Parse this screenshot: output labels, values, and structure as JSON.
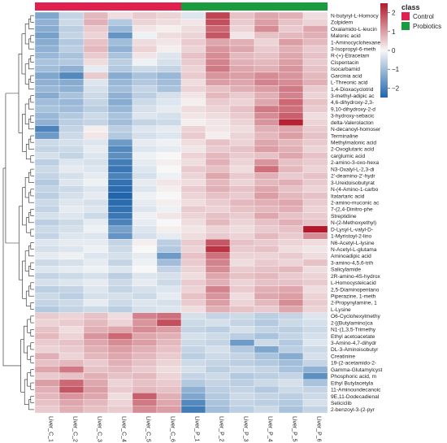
{
  "chart_data": {
    "type": "heatmap",
    "columns": [
      "Liver_C_1",
      "Liver_C_2",
      "Liver_C_3",
      "Liver_C_4",
      "Liver_C_5",
      "Liver_C_6",
      "Liver_P_1",
      "Liver_P_2",
      "Liver_P_3",
      "Liver_P_4",
      "Liver_P_5",
      "Liver_P_6"
    ],
    "column_class": [
      "Control",
      "Control",
      "Control",
      "Control",
      "Control",
      "Control",
      "Probiotics",
      "Probiotics",
      "Probiotics",
      "Probiotics",
      "Probiotics",
      "Probiotics"
    ],
    "rows": [
      "N-butyryl-L-Homocy",
      "Zolpidem",
      "Oxalamido-L-leucin",
      "Malonic acid",
      "1-Aminocyclohexane",
      "3-Isopropyl-6-meth",
      "R-(+)-Etracetam",
      "Cispentacin",
      "Isocarbamid",
      "Garcinia acid",
      "L-Threonic acid",
      "1,4-Dioxacyclotrid",
      "3-methyl-adipic ac",
      "4,6-dihydroxy-2,3-",
      "9,10-dihydroxy-2-d",
      "3-hydroxy-sebacic",
      "delta-Valerolacton",
      "N-decanoyl-homoser",
      "Terminaline",
      "Methylmalonic acid",
      "2-Oxoglutaric acid",
      "carglumic acid",
      "2-amino-3-oxo-hexa",
      "N3-Oxalyl-L-2,3-di",
      "2'-deamino-2'-hydr",
      "3-Ureidoisobutyrat",
      "N-(4-Amino-1-carbo",
      "Itatartaric acid",
      "2-amino-muconic ac",
      "7-(2,4-Dinitro-phe",
      "Streptidine",
      "N-(2-Methoxyethyl)",
      "D-Lysyl-L-valyl-D-",
      "1-Myristoyl-2-lino",
      "N6-Acetyl-L-lysine",
      "N-Acetyl-L-glutama",
      "Aminoadipic acid",
      "3-amino-4,5,6-trih",
      "Salicylamide",
      "2R-amino-4S-hydrox",
      "L-Homocysteicacid",
      "2,5-Diaminopentano",
      "Piperazine, 1-meth",
      "2-Propynylamine, 1",
      "L-Lysine",
      "O6-Cyclohexylmethy",
      "2-[(Butylamino)ca",
      "N1-(1,3,5-Trimethy",
      "Ethyl acetoacetate",
      "3-Amino-4,7-dihydr",
      "DL-3-Aminoisobutyr",
      "Creatinine",
      "19-(2-acetamido-2-",
      "Gamma-Glutamylcyst",
      "Phosphoric acid, m",
      "Ethyl Butylacetyla",
      "11-Aminoundecanoic",
      "9E,11-Dodecadienal",
      "Seliciclib",
      "2-benzoyl-3-(2-pyr"
    ],
    "values": [
      [
        -1.4,
        -0.6,
        0.7,
        0.3,
        0.5,
        0.4,
        -0.3,
        2.0,
        0.6,
        0.9,
        0.8,
        0.3
      ],
      [
        -1.2,
        -0.5,
        0.8,
        -0.8,
        0.4,
        0.3,
        0.2,
        1.9,
        0.5,
        1.0,
        0.6,
        0.4
      ],
      [
        -1.3,
        -0.7,
        0.5,
        -1.1,
        0.2,
        0.1,
        0.3,
        1.6,
        0.4,
        1.2,
        0.5,
        0.9
      ],
      [
        -1.5,
        -0.6,
        0.4,
        -1.7,
        -0.1,
        0.3,
        0.4,
        1.8,
        0.2,
        0.6,
        0.7,
        0.8
      ],
      [
        -1.3,
        -0.8,
        0.6,
        -1.0,
        0.3,
        0.2,
        0.5,
        0.9,
        0.8,
        0.4,
        1.0,
        0.7
      ],
      [
        -1.2,
        -0.7,
        0.7,
        -1.2,
        0.4,
        0.1,
        0.4,
        1.1,
        0.9,
        0.5,
        0.8,
        0.5
      ],
      [
        -1.1,
        -0.9,
        0.5,
        -0.9,
        0.2,
        -0.3,
        0.6,
        1.2,
        0.7,
        0.6,
        0.9,
        0.6
      ],
      [
        -0.9,
        -0.8,
        0.3,
        -0.7,
        -0.1,
        -0.4,
        0.5,
        1.3,
        0.8,
        0.7,
        1.0,
        0.5
      ],
      [
        -1.0,
        -1.2,
        -0.2,
        -0.8,
        -0.5,
        -0.6,
        0.4,
        1.4,
        0.9,
        0.8,
        1.1,
        0.6
      ],
      [
        -1.4,
        -1.9,
        0.5,
        -1.3,
        -0.9,
        -1.1,
        0.5,
        1.1,
        1.0,
        1.2,
        1.1,
        0.7
      ],
      [
        -1.2,
        -1.3,
        -0.3,
        -1.1,
        -0.8,
        -1.0,
        0.3,
        1.0,
        0.9,
        1.3,
        1.2,
        0.8
      ],
      [
        -1.1,
        -1.2,
        -0.4,
        -1.0,
        -0.6,
        -0.9,
        0.4,
        0.6,
        0.8,
        1.0,
        1.4,
        0.5
      ],
      [
        -1.3,
        -0.9,
        -0.5,
        -1.2,
        -0.7,
        -0.4,
        0.2,
        0.7,
        0.5,
        0.8,
        1.3,
        0.4
      ],
      [
        -1.0,
        -1.1,
        -0.6,
        -1.3,
        -0.5,
        -0.3,
        0.1,
        0.5,
        0.4,
        0.9,
        1.6,
        0.6
      ],
      [
        -0.9,
        -1.0,
        -0.7,
        -1.1,
        -0.4,
        -0.2,
        0.3,
        0.4,
        0.6,
        1.4,
        1.5,
        0.5
      ],
      [
        -1.1,
        -0.8,
        -0.5,
        -0.9,
        -0.3,
        -0.4,
        0.2,
        0.3,
        0.5,
        1.2,
        1.7,
        0.3
      ],
      [
        -1.2,
        -0.7,
        -0.6,
        -1.0,
        -0.6,
        -0.5,
        0.1,
        0.2,
        0.4,
        1.1,
        2.4,
        0.4
      ],
      [
        -2.0,
        -0.6,
        0.1,
        -0.7,
        -0.3,
        -0.2,
        0.4,
        0.2,
        0.3,
        0.8,
        0.9,
        0.5
      ],
      [
        -1.6,
        -0.5,
        0.2,
        -0.8,
        -0.4,
        -0.3,
        0.5,
        0.1,
        0.4,
        0.7,
        1.0,
        0.6
      ],
      [
        -0.5,
        -0.4,
        -0.3,
        -1.6,
        -0.2,
        -0.1,
        0.3,
        0.6,
        0.4,
        0.9,
        0.7,
        0.5
      ],
      [
        -0.6,
        -0.5,
        -0.2,
        -1.9,
        -0.3,
        -0.2,
        0.2,
        0.5,
        0.6,
        1.0,
        0.8,
        0.4
      ],
      [
        -0.4,
        -0.6,
        -0.3,
        -1.8,
        -0.1,
        0.0,
        0.4,
        0.7,
        0.5,
        0.6,
        0.9,
        0.6
      ],
      [
        -0.7,
        -0.3,
        -0.4,
        -2.1,
        -0.2,
        0.1,
        0.3,
        0.8,
        0.4,
        1.1,
        0.6,
        0.5
      ],
      [
        -0.5,
        -0.2,
        -0.3,
        -2.2,
        -0.3,
        0.0,
        0.5,
        0.6,
        0.3,
        1.5,
        0.7,
        0.4
      ],
      [
        -0.6,
        -0.4,
        -0.2,
        -2.0,
        -0.4,
        -0.1,
        0.4,
        0.9,
        0.5,
        0.8,
        0.5,
        0.6
      ],
      [
        -0.8,
        -0.3,
        -0.1,
        -2.3,
        -0.2,
        0.2,
        0.3,
        0.7,
        0.4,
        0.7,
        0.8,
        0.5
      ],
      [
        -0.6,
        -0.5,
        -0.3,
        -2.4,
        -0.3,
        0.1,
        0.5,
        0.8,
        0.6,
        0.9,
        0.6,
        0.4
      ],
      [
        -0.7,
        -0.4,
        -0.2,
        -2.5,
        -0.1,
        0.0,
        0.4,
        0.6,
        0.5,
        1.0,
        0.7,
        0.6
      ],
      [
        -0.5,
        -0.3,
        -0.4,
        -2.4,
        -0.2,
        0.1,
        0.3,
        0.5,
        0.7,
        0.8,
        0.9,
        0.5
      ],
      [
        -0.6,
        -0.2,
        -0.3,
        -2.3,
        -0.3,
        -0.1,
        0.5,
        0.4,
        0.6,
        0.7,
        0.8,
        0.4
      ],
      [
        -0.4,
        -0.3,
        -0.5,
        -2.2,
        -0.1,
        0.2,
        0.4,
        0.6,
        0.5,
        0.9,
        0.6,
        0.5
      ],
      [
        -0.7,
        -0.5,
        -0.2,
        -2.0,
        -0.2,
        0.0,
        0.3,
        0.7,
        0.4,
        0.6,
        0.8,
        0.6
      ],
      [
        -0.5,
        -0.4,
        -0.1,
        -1.5,
        -0.3,
        0.1,
        0.2,
        0.4,
        0.3,
        0.5,
        0.6,
        2.6
      ],
      [
        -0.6,
        -0.3,
        -0.3,
        -1.7,
        -0.4,
        -0.2,
        0.3,
        0.5,
        0.4,
        0.7,
        0.5,
        1.2
      ],
      [
        -0.3,
        -0.2,
        -0.2,
        -0.6,
        0.1,
        -0.7,
        0.5,
        1.8,
        0.6,
        0.5,
        0.4,
        0.3
      ],
      [
        -0.4,
        -0.3,
        -0.1,
        -0.5,
        0.0,
        -0.8,
        0.4,
        2.2,
        0.5,
        0.6,
        0.3,
        0.2
      ],
      [
        -0.2,
        -0.1,
        -0.3,
        -0.4,
        -0.2,
        -1.6,
        0.6,
        1.5,
        0.4,
        0.4,
        0.5,
        0.3
      ],
      [
        -0.5,
        -0.4,
        -0.2,
        -0.6,
        -0.1,
        -1.0,
        0.5,
        1.3,
        0.3,
        0.5,
        0.4,
        0.6
      ],
      [
        -0.3,
        -0.2,
        -0.1,
        -0.3,
        0.0,
        -0.6,
        0.4,
        1.2,
        0.5,
        0.6,
        0.7,
        0.3
      ],
      [
        -0.6,
        -0.5,
        -0.4,
        -0.7,
        -0.3,
        -0.4,
        0.3,
        0.9,
        0.6,
        0.7,
        0.5,
        0.4
      ],
      [
        -0.4,
        -0.3,
        -0.2,
        -0.5,
        -0.2,
        -0.5,
        0.5,
        0.8,
        0.4,
        0.6,
        0.6,
        0.5
      ],
      [
        -0.7,
        -0.6,
        -0.3,
        -0.6,
        -0.4,
        -0.3,
        0.4,
        1.3,
        0.5,
        0.8,
        0.9,
        0.3
      ],
      [
        -0.5,
        -0.7,
        -0.4,
        -0.4,
        -0.5,
        -0.2,
        0.6,
        1.1,
        0.3,
        0.9,
        1.0,
        0.4
      ],
      [
        -0.6,
        -0.5,
        -0.2,
        -0.5,
        -0.3,
        -0.4,
        0.5,
        1.0,
        0.4,
        0.7,
        1.2,
        0.5
      ],
      [
        -0.8,
        -0.6,
        -0.5,
        -0.7,
        -0.4,
        -0.3,
        0.3,
        0.8,
        0.6,
        0.5,
        0.9,
        0.4
      ],
      [
        0.5,
        0.4,
        0.6,
        0.3,
        1.3,
        1.5,
        -0.4,
        -0.6,
        -0.5,
        -0.7,
        -0.6,
        -0.3
      ],
      [
        0.4,
        0.5,
        0.7,
        0.4,
        1.1,
        1.9,
        -0.5,
        -0.4,
        -0.6,
        -0.8,
        -0.5,
        -0.4
      ],
      [
        0.6,
        0.3,
        0.8,
        0.9,
        1.2,
        1.0,
        -0.6,
        -0.7,
        -0.4,
        -0.6,
        -0.7,
        -0.5
      ],
      [
        0.7,
        0.4,
        1.1,
        1.6,
        0.9,
        0.8,
        -0.4,
        -0.5,
        -0.7,
        -0.9,
        -0.6,
        -0.4
      ],
      [
        0.5,
        0.6,
        0.9,
        1.2,
        1.0,
        0.7,
        -0.5,
        -0.6,
        -1.6,
        -0.5,
        -0.8,
        -0.3
      ],
      [
        0.4,
        0.5,
        0.8,
        1.0,
        0.8,
        0.6,
        -0.6,
        -0.4,
        -0.8,
        -1.4,
        -0.7,
        -0.5
      ],
      [
        0.8,
        0.4,
        0.7,
        0.9,
        0.7,
        0.5,
        -0.7,
        -0.5,
        -0.6,
        -0.9,
        -1.3,
        -0.4
      ],
      [
        0.6,
        0.7,
        0.5,
        0.8,
        0.6,
        0.4,
        -0.5,
        -0.6,
        -0.7,
        -0.8,
        -1.0,
        -0.6
      ],
      [
        0.9,
        1.4,
        0.6,
        0.7,
        0.5,
        0.3,
        -0.4,
        -0.7,
        -0.5,
        -0.6,
        -0.9,
        -1.2
      ],
      [
        0.5,
        0.6,
        0.8,
        0.6,
        0.7,
        0.4,
        -0.6,
        -0.5,
        -0.8,
        -0.7,
        -0.6,
        -1.8
      ],
      [
        1.0,
        1.6,
        0.9,
        0.4,
        0.6,
        0.5,
        -0.8,
        -0.6,
        -0.7,
        -0.5,
        -0.4,
        -0.9
      ],
      [
        0.8,
        1.8,
        1.0,
        0.5,
        0.7,
        0.6,
        -1.2,
        -0.7,
        -0.6,
        -0.8,
        -0.5,
        -0.6
      ],
      [
        0.7,
        1.1,
        0.9,
        0.3,
        1.7,
        0.8,
        -1.4,
        -0.8,
        -0.5,
        -0.6,
        -0.7,
        -0.5
      ],
      [
        0.6,
        0.9,
        0.7,
        0.4,
        1.4,
        0.9,
        -1.9,
        -0.9,
        -0.6,
        -0.7,
        -0.8,
        -0.4
      ],
      [
        0.5,
        0.8,
        0.6,
        0.5,
        1.2,
        1.0,
        -2.1,
        -1.0,
        -0.7,
        -0.5,
        -0.9,
        -0.6
      ]
    ],
    "colorbar": {
      "min": -2.5,
      "max": 2.5,
      "ticks": [
        2,
        1,
        0,
        -1,
        -2
      ]
    },
    "color_low": "#2166ac",
    "color_mid": "#f7f7f7",
    "color_high": "#b2182b",
    "legend": {
      "title": "class",
      "items": [
        {
          "label": "Control",
          "color": "#e0204f"
        },
        {
          "label": "Probiotics",
          "color": "#1a9c3e"
        }
      ]
    },
    "dendrogram": {
      "row": true,
      "column": false
    }
  }
}
